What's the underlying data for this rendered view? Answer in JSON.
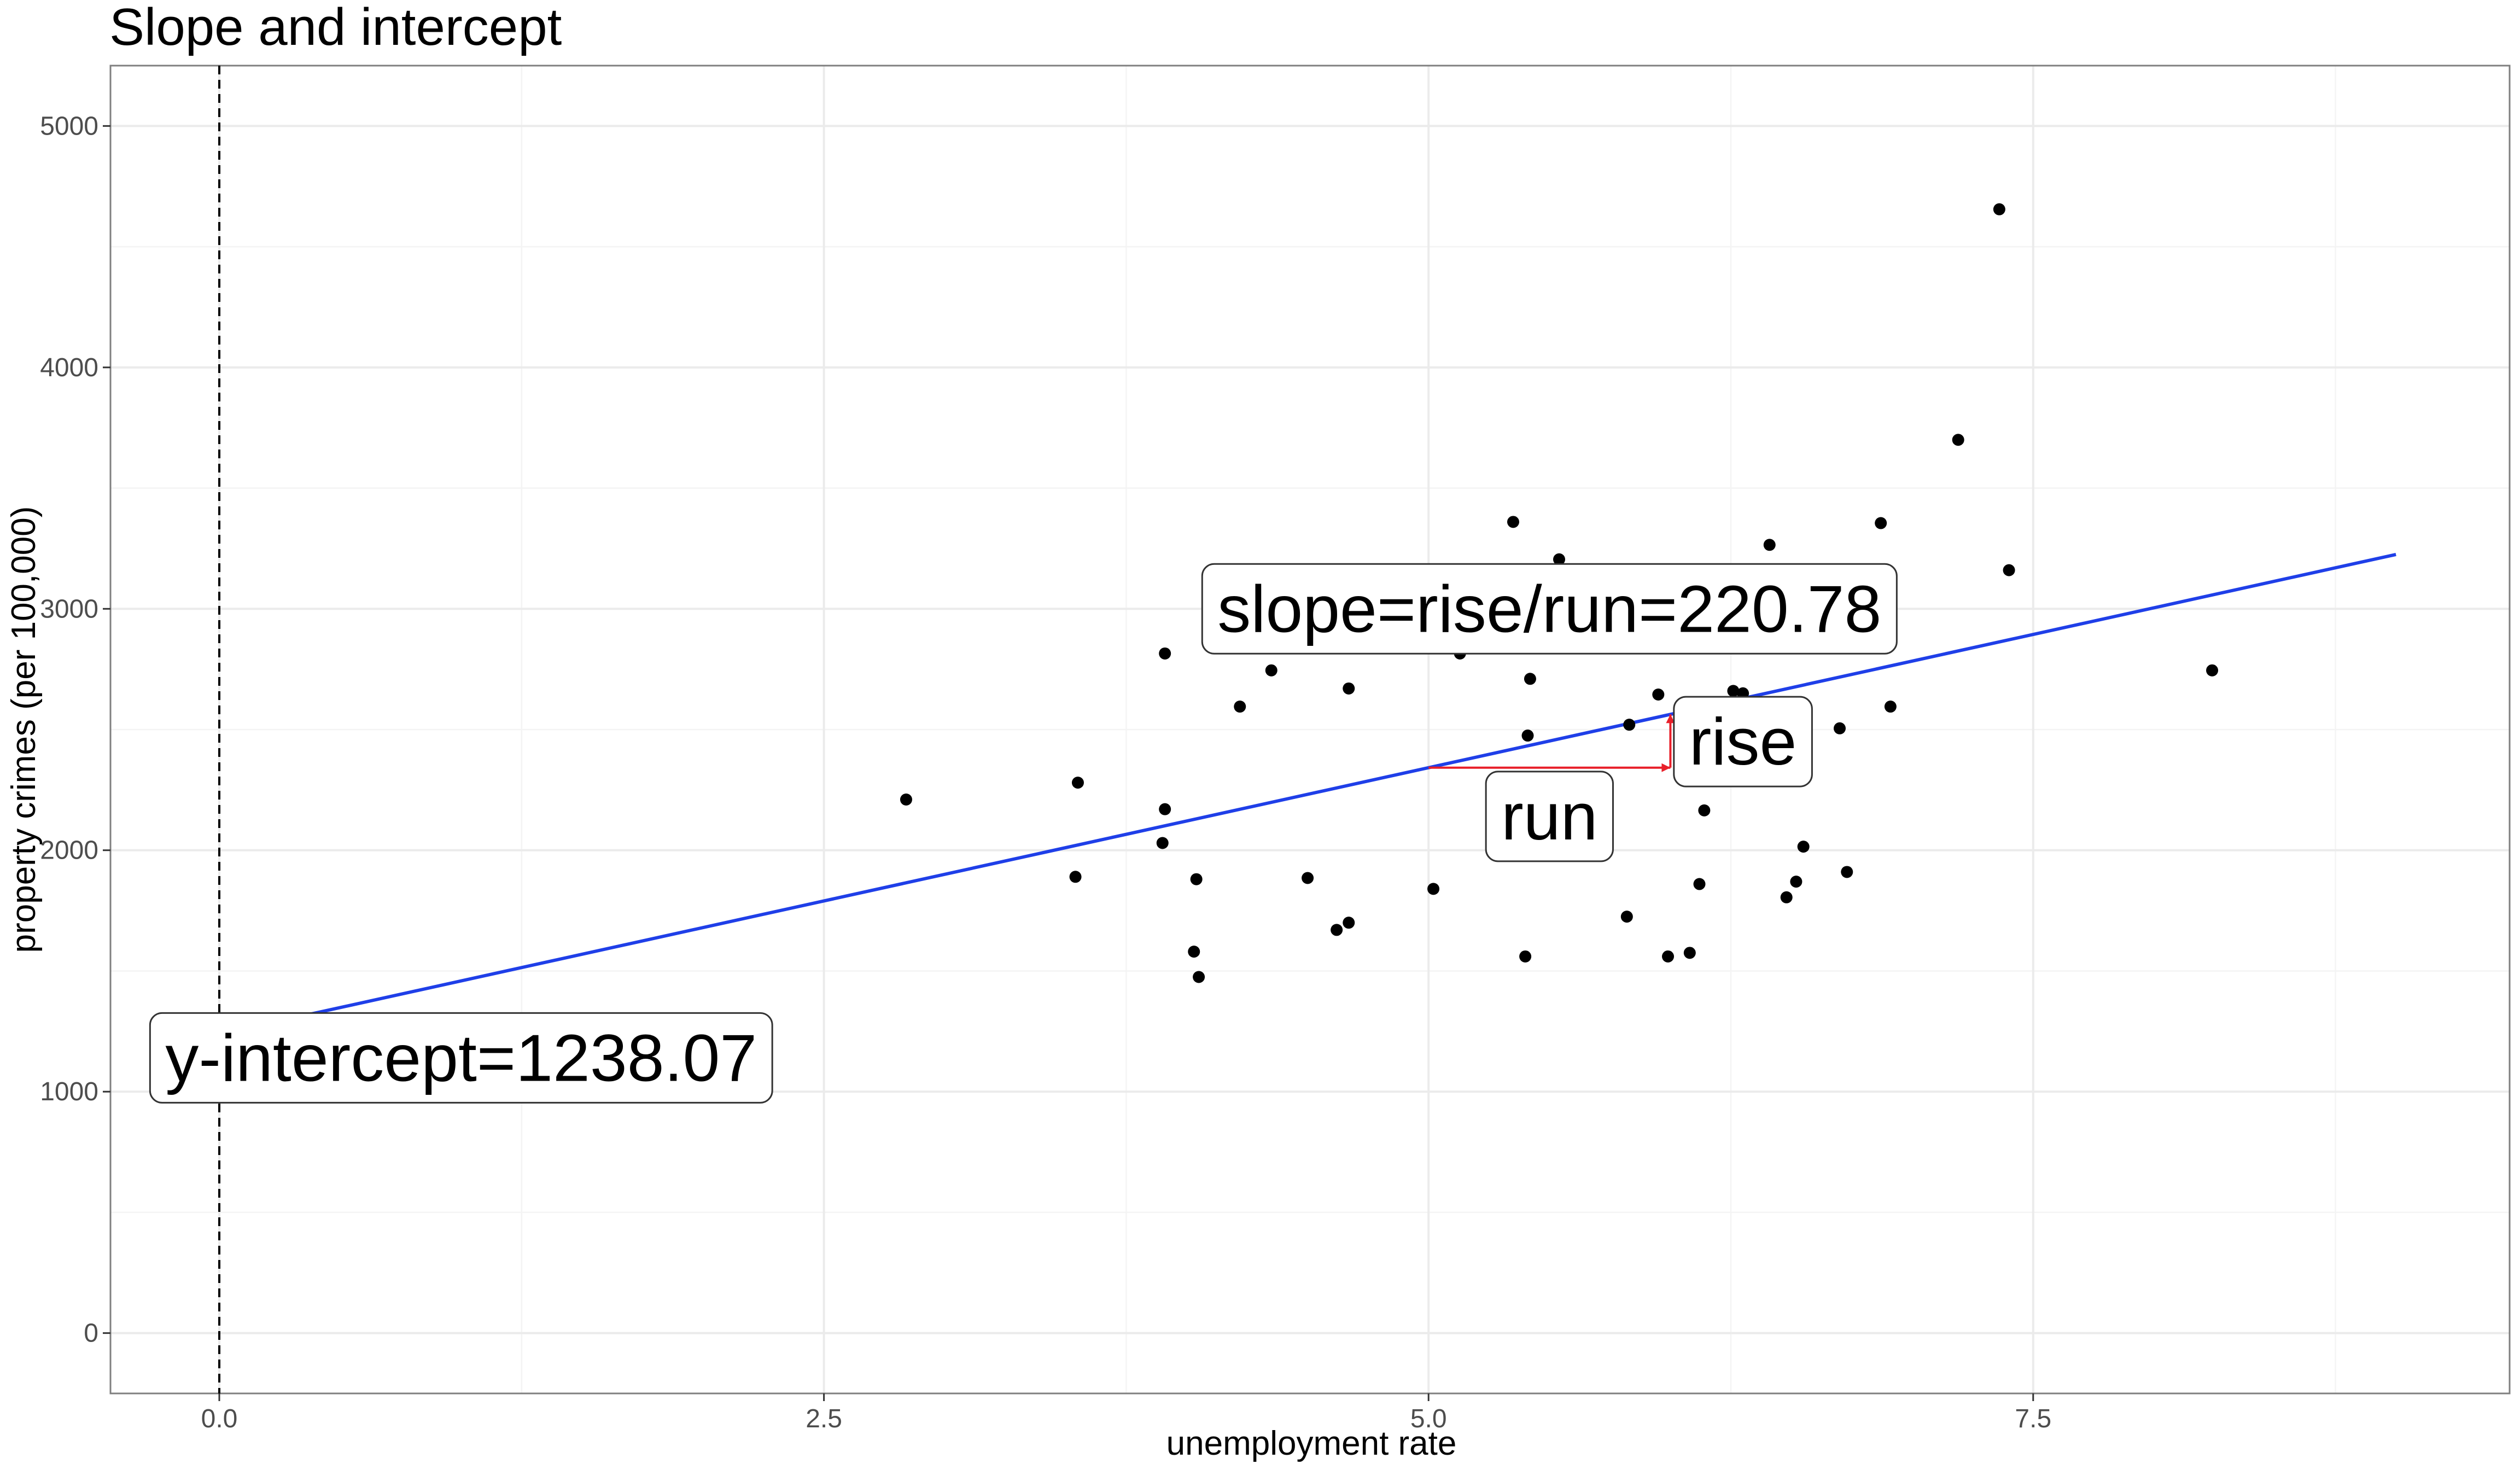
{
  "chart_data": {
    "type": "scatter",
    "title": "Slope and intercept",
    "xlabel": "unemployment rate",
    "ylabel": "property crimes (per 100,000)",
    "xlim": [
      -0.45,
      9.47
    ],
    "ylim": [
      -250,
      5250
    ],
    "x_ticks": [
      0,
      2.5,
      5,
      7.5
    ],
    "x_tick_labels": [
      "0.0",
      "2.5",
      "5.0",
      "7.5"
    ],
    "y_ticks": [
      0,
      1000,
      2000,
      3000,
      4000,
      5000
    ],
    "y_tick_labels": [
      "0",
      "1000",
      "2000",
      "3000",
      "4000",
      "5000"
    ],
    "grid": true,
    "points": [
      {
        "x": 2.84,
        "y": 2210
      },
      {
        "x": 3.55,
        "y": 2280
      },
      {
        "x": 3.54,
        "y": 1890
      },
      {
        "x": 3.9,
        "y": 2030
      },
      {
        "x": 3.91,
        "y": 2170
      },
      {
        "x": 3.91,
        "y": 2815
      },
      {
        "x": 4.03,
        "y": 1580
      },
      {
        "x": 4.04,
        "y": 1880
      },
      {
        "x": 4.05,
        "y": 1475
      },
      {
        "x": 4.22,
        "y": 2595
      },
      {
        "x": 4.35,
        "y": 2745
      },
      {
        "x": 4.5,
        "y": 1885
      },
      {
        "x": 4.62,
        "y": 1670
      },
      {
        "x": 4.67,
        "y": 1700
      },
      {
        "x": 4.67,
        "y": 2670
      },
      {
        "x": 5.02,
        "y": 1840
      },
      {
        "x": 5.13,
        "y": 2815
      },
      {
        "x": 5.35,
        "y": 3360
      },
      {
        "x": 5.4,
        "y": 1560
      },
      {
        "x": 5.42,
        "y": 2710
      },
      {
        "x": 5.41,
        "y": 2475
      },
      {
        "x": 5.54,
        "y": 3205
      },
      {
        "x": 5.82,
        "y": 1725
      },
      {
        "x": 5.83,
        "y": 2520
      },
      {
        "x": 5.95,
        "y": 2645
      },
      {
        "x": 5.99,
        "y": 1560
      },
      {
        "x": 6.08,
        "y": 1575
      },
      {
        "x": 6.12,
        "y": 1860
      },
      {
        "x": 6.14,
        "y": 2165
      },
      {
        "x": 6.26,
        "y": 2660
      },
      {
        "x": 6.3,
        "y": 2650
      },
      {
        "x": 6.41,
        "y": 3265
      },
      {
        "x": 6.48,
        "y": 1805
      },
      {
        "x": 6.52,
        "y": 1870
      },
      {
        "x": 6.55,
        "y": 2015
      },
      {
        "x": 6.7,
        "y": 2505
      },
      {
        "x": 6.73,
        "y": 1910
      },
      {
        "x": 6.87,
        "y": 3355
      },
      {
        "x": 6.91,
        "y": 2595
      },
      {
        "x": 7.19,
        "y": 3700
      },
      {
        "x": 7.36,
        "y": 4655
      },
      {
        "x": 7.4,
        "y": 3160
      },
      {
        "x": 8.24,
        "y": 2745
      }
    ],
    "fit_line": {
      "intercept": 1238.07,
      "slope": 220.78,
      "x_start": 0.3,
      "x_end": 9.0
    },
    "y_intercept_line_x": 0,
    "run_segment": {
      "x0": 5,
      "x1": 6
    },
    "annotations": {
      "slope": {
        "text": "slope=rise/run=220.78",
        "x": 5.5,
        "y": 3000
      },
      "rise": {
        "text": "rise",
        "x": 6.3,
        "y": 2450
      },
      "run": {
        "text": "run",
        "x": 5.5,
        "y": 2140
      },
      "intercept": {
        "text": "y-intercept=1238.07",
        "x": 1.0,
        "y": 1140
      }
    },
    "colors": {
      "points": "#000000",
      "fit_line": "#1f3fe8",
      "rise_run": "#e8202a",
      "vline": "#000000",
      "panel_border": "#7f7f7f",
      "grid": "#ebebeb"
    }
  }
}
